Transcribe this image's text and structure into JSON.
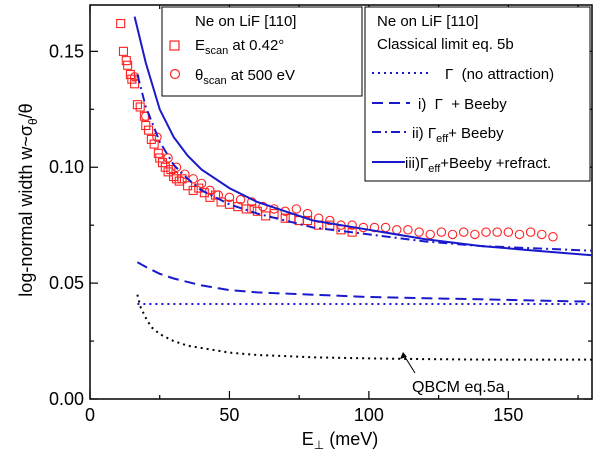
{
  "chart_data": {
    "type": "scatter",
    "xlabel": "E⊥ (meV)",
    "ylabel": "log-normal width w~σθ/θ",
    "xlim": [
      0,
      180
    ],
    "ylim": [
      0.0,
      0.17
    ],
    "xticks": [
      0,
      50,
      100,
      150
    ],
    "yticks": [
      0.0,
      0.05,
      0.1,
      0.15
    ],
    "xtick_labels": [
      "0",
      "50",
      "100",
      "150"
    ],
    "ytick_labels": [
      "0.00",
      "0.05",
      "0.10",
      "0.15"
    ],
    "legend_left": {
      "title": "Ne on LiF [110]",
      "entries": [
        {
          "name": "E_scan at 0.42°",
          "marker": "square"
        },
        {
          "name": "θ_scan at 500 eV",
          "marker": "circle"
        }
      ]
    },
    "legend_right": {
      "title": "Ne on LiF [110]",
      "subtitle": "Classical limit eq. 5b",
      "entries": [
        {
          "name": "Γ (no attraction)",
          "style": "dotted"
        },
        {
          "name": "i) Γ + Beeby",
          "style": "dashed"
        },
        {
          "name": "ii) Γeff+ Beeby",
          "style": "dashdot"
        },
        {
          "name": "iii)Γeff+Beeby +refract.",
          "style": "solid"
        }
      ]
    },
    "annotation": "QBCM eq.5a",
    "colors": {
      "data": "#ff2222",
      "model": "#1a1acc",
      "annotation": "#000000"
    },
    "series": [
      {
        "name": "E_scan at 0.42°",
        "kind": "markers",
        "marker": "square",
        "x": [
          11,
          12,
          13,
          13.5,
          14.5,
          15,
          16,
          17,
          18,
          19.5,
          20,
          21,
          22,
          23,
          24.5,
          25,
          26,
          27,
          28,
          29,
          30,
          31,
          32,
          33,
          35,
          37,
          39,
          41,
          43,
          45,
          47,
          50,
          53,
          56,
          58,
          60,
          63,
          66,
          70,
          72,
          75,
          78,
          82,
          86,
          90,
          94
        ],
        "y": [
          0.162,
          0.15,
          0.146,
          0.144,
          0.14,
          0.138,
          0.136,
          0.127,
          0.126,
          0.122,
          0.118,
          0.116,
          0.112,
          0.11,
          0.106,
          0.104,
          0.102,
          0.1,
          0.098,
          0.099,
          0.096,
          0.095,
          0.094,
          0.095,
          0.092,
          0.09,
          0.091,
          0.089,
          0.087,
          0.088,
          0.085,
          0.084,
          0.083,
          0.082,
          0.082,
          0.081,
          0.079,
          0.08,
          0.078,
          0.078,
          0.077,
          0.077,
          0.075,
          0.075,
          0.073,
          0.072
        ]
      },
      {
        "name": "θ_scan at 500 eV",
        "kind": "markers",
        "marker": "circle",
        "x": [
          16,
          20,
          24,
          28,
          31,
          34,
          37,
          40,
          43,
          46,
          50,
          54,
          58,
          62,
          66,
          70,
          74,
          78,
          82,
          86,
          90,
          94,
          98,
          102,
          106,
          110,
          114,
          118,
          122,
          126,
          130,
          134,
          138,
          142,
          146,
          150,
          154,
          158,
          162,
          166
        ],
        "y": [
          0.139,
          0.122,
          0.113,
          0.104,
          0.1,
          0.097,
          0.095,
          0.093,
          0.09,
          0.088,
          0.087,
          0.086,
          0.085,
          0.083,
          0.082,
          0.081,
          0.082,
          0.08,
          0.078,
          0.077,
          0.075,
          0.075,
          0.074,
          0.074,
          0.074,
          0.073,
          0.073,
          0.072,
          0.071,
          0.072,
          0.071,
          0.072,
          0.071,
          0.072,
          0.072,
          0.072,
          0.071,
          0.072,
          0.071,
          0.07
        ]
      },
      {
        "name": "Γ (no attraction)",
        "kind": "line",
        "style": "dotted",
        "x": [
          17,
          20,
          25,
          40,
          60,
          80,
          100,
          120,
          140,
          160,
          180
        ],
        "y": [
          0.041,
          0.041,
          0.041,
          0.041,
          0.041,
          0.041,
          0.041,
          0.041,
          0.041,
          0.041,
          0.041
        ]
      },
      {
        "name": "i) Γ + Beeby",
        "kind": "line",
        "style": "dashed",
        "x": [
          17,
          20,
          25,
          30,
          40,
          50,
          60,
          80,
          100,
          120,
          140,
          160,
          180
        ],
        "y": [
          0.059,
          0.057,
          0.054,
          0.052,
          0.049,
          0.047,
          0.046,
          0.045,
          0.044,
          0.0435,
          0.043,
          0.0425,
          0.042
        ]
      },
      {
        "name": "ii) Γeff+ Beeby",
        "kind": "line",
        "style": "dashdot",
        "x": [
          17,
          20,
          25,
          30,
          35,
          40,
          50,
          60,
          70,
          80,
          100,
          120,
          140,
          160,
          180
        ],
        "y": [
          0.14,
          0.126,
          0.111,
          0.101,
          0.095,
          0.09,
          0.084,
          0.08,
          0.077,
          0.074,
          0.071,
          0.068,
          0.066,
          0.065,
          0.064
        ]
      },
      {
        "name": "iii)Γeff+Beeby +refract.",
        "kind": "line",
        "style": "solid",
        "x": [
          16,
          20,
          25,
          30,
          35,
          40,
          50,
          60,
          70,
          80,
          100,
          120,
          140,
          160,
          180
        ],
        "y": [
          0.165,
          0.145,
          0.125,
          0.113,
          0.105,
          0.099,
          0.091,
          0.085,
          0.081,
          0.077,
          0.073,
          0.069,
          0.066,
          0.064,
          0.062
        ]
      },
      {
        "name": "QBCM eq.5a",
        "kind": "line",
        "style": "dotted-black",
        "x": [
          17,
          18,
          20,
          22,
          25,
          30,
          35,
          40,
          50,
          60,
          70,
          80,
          100,
          120,
          140,
          160,
          180
        ],
        "y": [
          0.045,
          0.04,
          0.035,
          0.031,
          0.028,
          0.025,
          0.023,
          0.022,
          0.02,
          0.019,
          0.0185,
          0.018,
          0.0175,
          0.0172,
          0.017,
          0.017,
          0.017
        ]
      }
    ]
  }
}
